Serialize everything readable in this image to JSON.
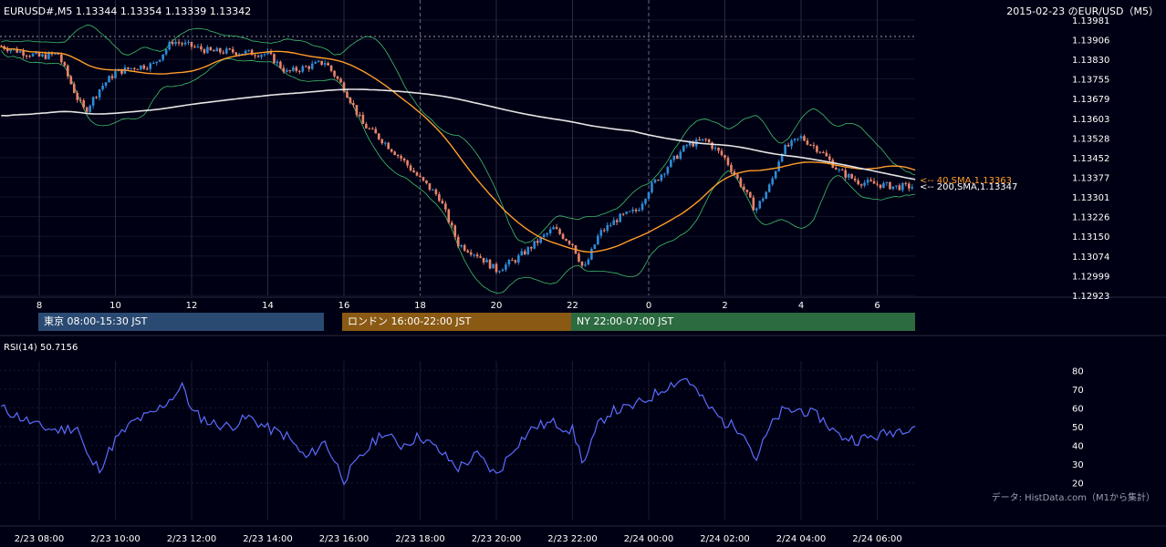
{
  "header": {
    "symbol_line": "EURUSD#,M5 1.13344 1.13354 1.13339 1.13342",
    "date_title": "2015-02-23 のEUR/USD（M5）"
  },
  "colors": {
    "background": "#000014",
    "candle_up": "#2e8bd6",
    "candle_down": "#e8846a",
    "sma40": "#ff9d2a",
    "sma200": "#e6e6e6",
    "bollinger": "#3fbf6a",
    "rsi": "#5b6cff",
    "tokyo": "#2a4a72",
    "london": "#8a5a14",
    "ny": "#2c6a40"
  },
  "price_chart": {
    "y_ticks": [
      "1.13981",
      "1.13906",
      "1.13830",
      "1.13755",
      "1.13679",
      "1.13603",
      "1.13528",
      "1.13452",
      "1.13377",
      "1.13301",
      "1.13226",
      "1.13150",
      "1.13074",
      "1.12999",
      "1.12923"
    ],
    "x_ticks": [
      "8",
      "10",
      "12",
      "14",
      "16",
      "18",
      "20",
      "22",
      "0",
      "2",
      "4",
      "6"
    ],
    "sma40_label": "<-- 40,SMA,1.13363",
    "sma200_label": "<-- 200,SMA,1.13347",
    "sessions": [
      {
        "label": "東京 08:00-15:30 JST"
      },
      {
        "label": "ロンドン 16:00-22:00 JST"
      },
      {
        "label": "NY 22:00-07:00 JST"
      }
    ]
  },
  "rsi_chart": {
    "title": "RSI(14) 50.7156",
    "y_ticks": [
      "80",
      "70",
      "60",
      "50",
      "40",
      "30",
      "20"
    ],
    "x_ticks": [
      "2/23 08:00",
      "2/23 10:00",
      "2/23 12:00",
      "2/23 14:00",
      "2/23 16:00",
      "2/23 18:00",
      "2/23 20:00",
      "2/23 22:00",
      "2/24 00:00",
      "2/24 02:00",
      "2/24 04:00",
      "2/24 06:00"
    ],
    "source_note": "データ: HistData.com（M1から集計）"
  },
  "chart_data": [
    {
      "type": "candlestick",
      "title": "EURUSD#,M5",
      "x_hours": [
        8,
        10,
        12,
        14,
        16,
        18,
        20,
        22,
        24,
        26,
        28,
        30
      ],
      "ylim": [
        1.12923,
        1.13981
      ],
      "close_approx": [
        [
          7,
          1.1388
        ],
        [
          7.5,
          1.1386
        ],
        [
          8,
          1.1384
        ],
        [
          8.5,
          1.1385
        ],
        [
          9,
          1.1368
        ],
        [
          9.2,
          1.1363
        ],
        [
          9.6,
          1.1372
        ],
        [
          10,
          1.1378
        ],
        [
          10.5,
          1.138
        ],
        [
          11,
          1.1381
        ],
        [
          11.5,
          1.139
        ],
        [
          12,
          1.1388
        ],
        [
          12.5,
          1.1386
        ],
        [
          13,
          1.1386
        ],
        [
          14,
          1.1385
        ],
        [
          14.5,
          1.1378
        ],
        [
          15,
          1.138
        ],
        [
          15.5,
          1.1382
        ],
        [
          16,
          1.1372
        ],
        [
          16.5,
          1.1358
        ],
        [
          17,
          1.1352
        ],
        [
          17.5,
          1.1345
        ],
        [
          18,
          1.1337
        ],
        [
          18.5,
          1.133
        ],
        [
          19,
          1.1312
        ],
        [
          19.5,
          1.1308
        ],
        [
          20,
          1.1302
        ],
        [
          20.5,
          1.1306
        ],
        [
          21,
          1.1312
        ],
        [
          21.5,
          1.1318
        ],
        [
          22,
          1.1312
        ],
        [
          22.3,
          1.1302
        ],
        [
          22.7,
          1.1316
        ],
        [
          23.2,
          1.1322
        ],
        [
          23.7,
          1.1325
        ],
        [
          24,
          1.1333
        ],
        [
          24.5,
          1.1342
        ],
        [
          25,
          1.135
        ],
        [
          25.5,
          1.1352
        ],
        [
          26,
          1.1345
        ],
        [
          26.5,
          1.1333
        ],
        [
          26.8,
          1.1325
        ],
        [
          27.2,
          1.1335
        ],
        [
          27.5,
          1.1348
        ],
        [
          28,
          1.1353
        ],
        [
          28.5,
          1.1348
        ],
        [
          29,
          1.134
        ],
        [
          29.5,
          1.1336
        ],
        [
          30,
          1.1335
        ],
        [
          30.5,
          1.1334
        ],
        [
          31,
          1.13342
        ]
      ],
      "sma40_last": 1.13363,
      "sma200_last": 1.13347
    },
    {
      "type": "line",
      "title": "RSI(14) 50.7156",
      "ylim": [
        15,
        85
      ],
      "values_approx": [
        [
          7,
          60
        ],
        [
          7.5,
          55
        ],
        [
          8,
          50
        ],
        [
          8.5,
          48
        ],
        [
          9,
          50
        ],
        [
          9.3,
          32
        ],
        [
          9.6,
          28
        ],
        [
          10,
          43
        ],
        [
          10.5,
          53
        ],
        [
          11,
          57
        ],
        [
          11.5,
          66
        ],
        [
          11.8,
          72
        ],
        [
          12,
          58
        ],
        [
          12.5,
          52
        ],
        [
          13,
          50
        ],
        [
          13.5,
          55
        ],
        [
          14,
          49
        ],
        [
          14.5,
          45
        ],
        [
          15,
          33
        ],
        [
          15.5,
          42
        ],
        [
          16,
          22
        ],
        [
          16.5,
          35
        ],
        [
          17,
          47
        ],
        [
          17.5,
          40
        ],
        [
          18,
          45
        ],
        [
          18.5,
          37
        ],
        [
          19,
          28
        ],
        [
          19.5,
          35
        ],
        [
          20,
          24
        ],
        [
          20.5,
          40
        ],
        [
          21,
          50
        ],
        [
          21.5,
          52
        ],
        [
          22,
          48
        ],
        [
          22.3,
          30
        ],
        [
          22.7,
          52
        ],
        [
          23,
          58
        ],
        [
          23.5,
          60
        ],
        [
          24,
          65
        ],
        [
          24.5,
          72
        ],
        [
          25,
          76
        ],
        [
          25.5,
          62
        ],
        [
          26,
          52
        ],
        [
          26.5,
          48
        ],
        [
          26.8,
          32
        ],
        [
          27.2,
          50
        ],
        [
          27.5,
          58
        ],
        [
          28,
          59
        ],
        [
          28.5,
          55
        ],
        [
          29,
          45
        ],
        [
          29.5,
          43
        ],
        [
          30,
          45
        ],
        [
          30.5,
          48
        ],
        [
          31,
          51
        ]
      ]
    }
  ]
}
